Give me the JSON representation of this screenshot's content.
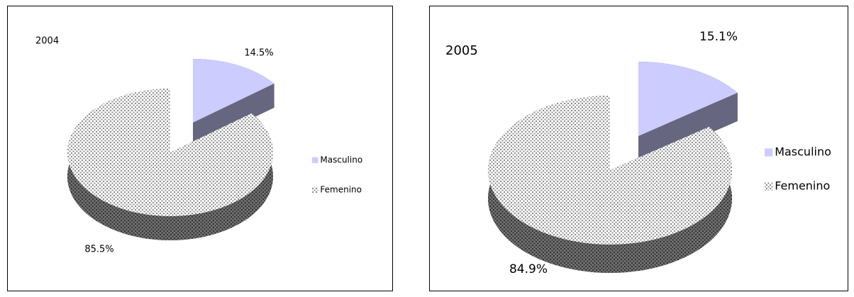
{
  "chart_data": [
    {
      "type": "pie",
      "title": "2004",
      "categories": [
        "Masculino",
        "Femenino"
      ],
      "values": [
        14.5,
        85.5
      ],
      "value_labels": [
        "14.5%",
        "85.5%"
      ],
      "colors": [
        "#ccccff",
        "#8c8c8c"
      ],
      "fill_styles": [
        "solid",
        "dotted"
      ],
      "legend": "right"
    },
    {
      "type": "pie",
      "title": "2005",
      "categories": [
        "Masculino",
        "Femenino"
      ],
      "values": [
        15.1,
        84.9
      ],
      "value_labels": [
        "15.1%",
        "84.9%"
      ],
      "colors": [
        "#ccccff",
        "#8c8c8c"
      ],
      "fill_styles": [
        "solid",
        "dotted"
      ],
      "legend": "right"
    }
  ]
}
